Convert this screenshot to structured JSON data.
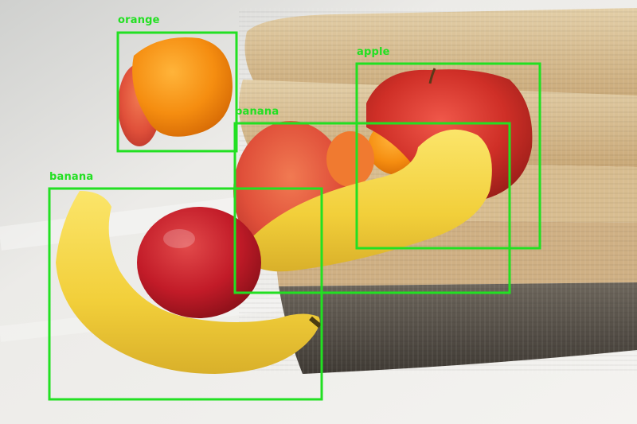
{
  "colors": {
    "box": "#22e022",
    "floor": "#e9e9e7",
    "mat_light": "#d6b98c",
    "mat_dark": "#5b544c",
    "apple_red": "#d8342a",
    "orange": "#f08a10",
    "banana": "#f2d23c"
  },
  "detections": [
    {
      "label": "orange"
    },
    {
      "label": "apple"
    },
    {
      "label": "banana"
    },
    {
      "label": "banana"
    }
  ]
}
